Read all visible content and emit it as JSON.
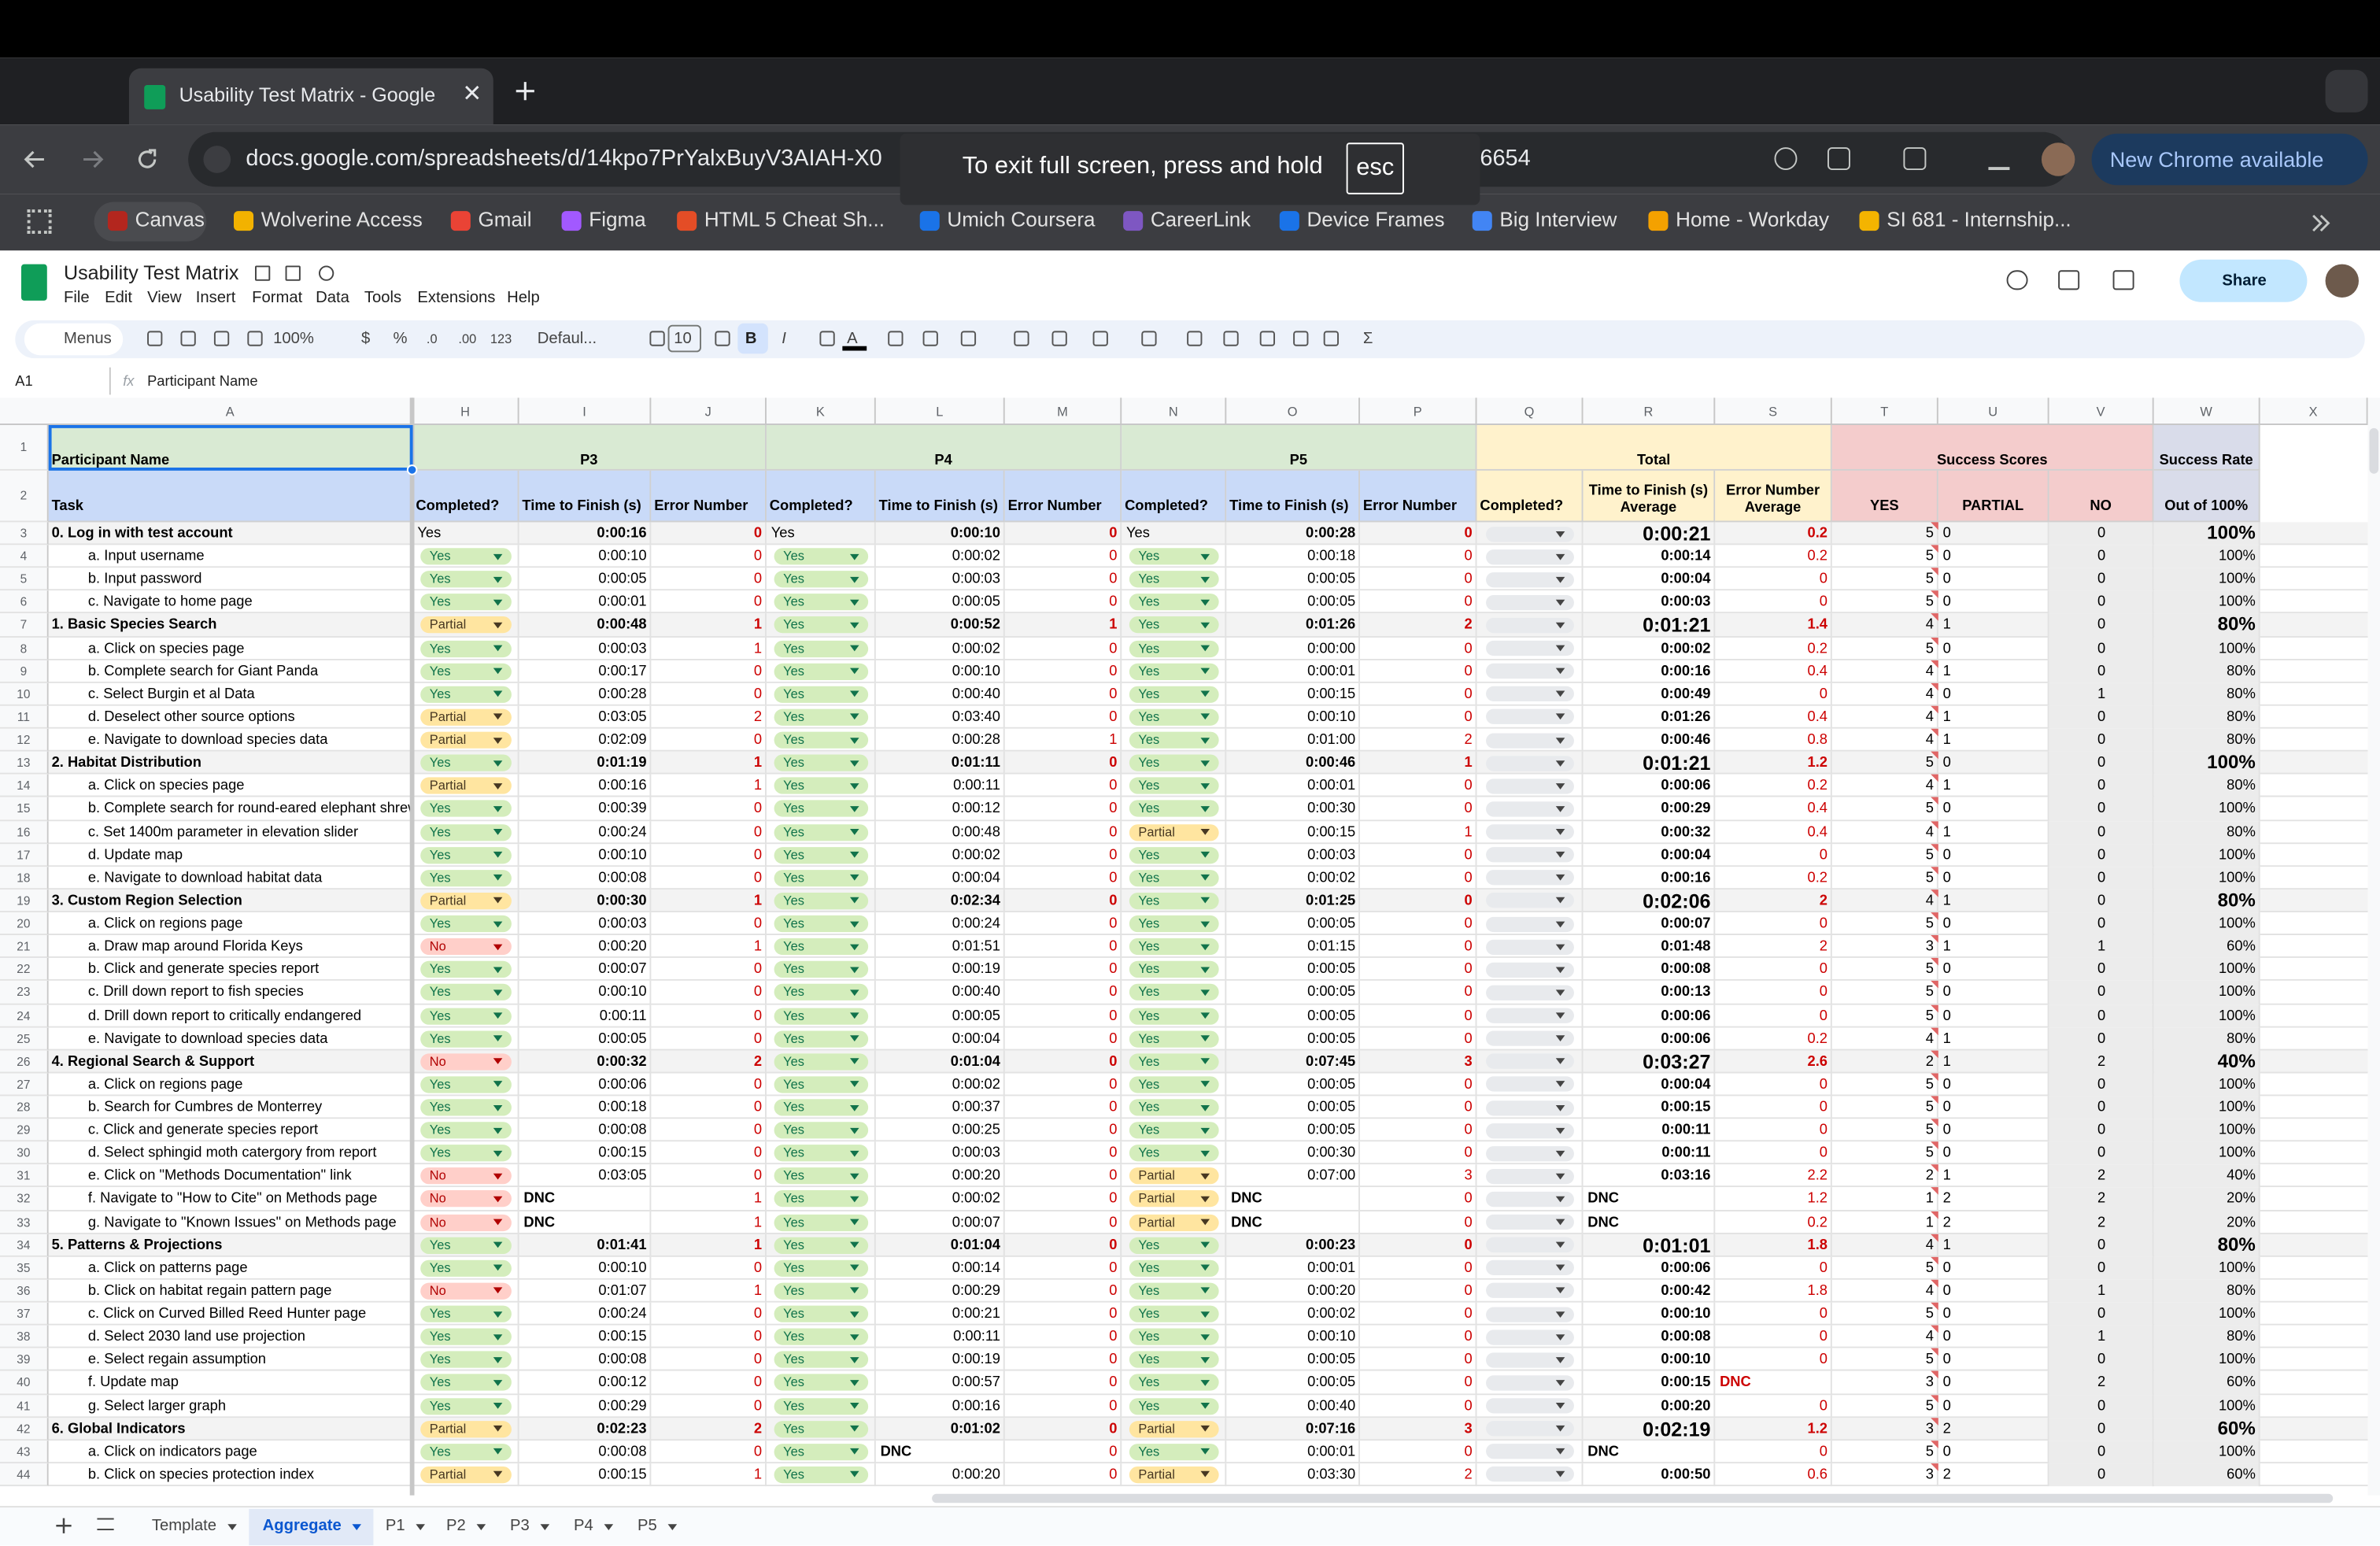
{
  "browser": {
    "tab_title": "Usability Test Matrix - Google",
    "url": "docs.google.com/spreadsheets/d/14kpo7PrYalxBuyV3AIAH-X0",
    "url_tail": "6654",
    "fullscreen_notice": "To exit full screen, press and hold",
    "esc_key": "esc",
    "update_button": "New Chrome available",
    "bookmarks": [
      "Canvas",
      "Wolverine Access",
      "Gmail",
      "Figma",
      "HTML 5 Cheat Sh...",
      "Umich Coursera",
      "CareerLink",
      "Device Frames",
      "Big Interview",
      "Home - Workday",
      "SI 681 - Internship..."
    ]
  },
  "sheets": {
    "title": "Usability Test Matrix",
    "menu": [
      "File",
      "Edit",
      "View",
      "Insert",
      "Format",
      "Data",
      "Tools",
      "Extensions",
      "Help"
    ],
    "share": "Share",
    "toolbar": {
      "search": "Menus",
      "zoom": "100%",
      "currency": "$",
      "percent": "%",
      "decrease_decimal": ".0",
      "increase_decimal": ".00",
      "number_format": "123",
      "font": "Defaul...",
      "font_size": "10",
      "bold": "B",
      "italic": "I",
      "text_color": "A",
      "functions": "Σ"
    },
    "name_box": "A1",
    "formula_label": "fx",
    "formula": "Participant Name",
    "columns": [
      "A",
      "H",
      "I",
      "J",
      "K",
      "L",
      "M",
      "N",
      "O",
      "P",
      "Q",
      "R",
      "S",
      "T",
      "U",
      "V",
      "W",
      "X"
    ],
    "header_rows": [
      {
        "n": "1",
        "cells": [
          "Participant Name",
          "P3",
          "P4",
          "P5",
          "Total",
          "Success Scores",
          "Success Rate"
        ]
      },
      {
        "n": "2",
        "cells": [
          "Task",
          "Completed?",
          "Time to Finish (s)",
          "Error Number",
          "Completed?",
          "Time to Finish (s)",
          "Error Number",
          "Completed?",
          "Time to Finish (s)",
          "Error Number",
          "Completed?",
          "Time to Finish (s) Average",
          "Error Number Average",
          "YES",
          "PARTIAL",
          "NO",
          "Out of 100%"
        ]
      }
    ],
    "rows": [
      {
        "n": "3",
        "cells": [
          "0. Log in with test account",
          "Yes",
          "0:00:16",
          "0",
          "Yes",
          "0:00:10",
          "0",
          "Yes",
          "0:00:28",
          "0",
          "0:00:21",
          "0.2",
          "5",
          "0",
          "0",
          "100%"
        ]
      },
      {
        "n": "4",
        "cells": [
          "a. Input username",
          "Yes",
          "0:00:10",
          "0",
          "Yes",
          "0:00:02",
          "0",
          "Yes",
          "0:00:18",
          "0",
          "0:00:14",
          "0.2",
          "5",
          "0",
          "0",
          "100%"
        ]
      },
      {
        "n": "5",
        "cells": [
          "b. Input password",
          "Yes",
          "0:00:05",
          "0",
          "Yes",
          "0:00:03",
          "0",
          "Yes",
          "0:00:05",
          "0",
          "0:00:04",
          "0",
          "5",
          "0",
          "0",
          "100%"
        ]
      },
      {
        "n": "6",
        "cells": [
          "c. Navigate to home page",
          "Yes",
          "0:00:01",
          "0",
          "Yes",
          "0:00:05",
          "0",
          "Yes",
          "0:00:05",
          "0",
          "0:00:03",
          "0",
          "5",
          "0",
          "0",
          "100%"
        ]
      },
      {
        "n": "7",
        "cells": [
          "1. Basic Species Search",
          "Partial",
          "0:00:48",
          "1",
          "Yes",
          "0:00:52",
          "1",
          "Yes",
          "0:01:26",
          "2",
          "0:01:21",
          "1.4",
          "4",
          "1",
          "0",
          "80%"
        ]
      },
      {
        "n": "8",
        "cells": [
          "a. Click on species page",
          "Yes",
          "0:00:03",
          "1",
          "Yes",
          "0:00:02",
          "0",
          "Yes",
          "0:00:00",
          "0",
          "0:00:02",
          "0.2",
          "5",
          "0",
          "0",
          "100%"
        ]
      },
      {
        "n": "9",
        "cells": [
          "b. Complete search for Giant Panda",
          "Yes",
          "0:00:17",
          "0",
          "Yes",
          "0:00:10",
          "0",
          "Yes",
          "0:00:01",
          "0",
          "0:00:16",
          "0.4",
          "4",
          "1",
          "0",
          "80%"
        ]
      },
      {
        "n": "10",
        "cells": [
          "c. Select Burgin et al Data",
          "Yes",
          "0:00:28",
          "0",
          "Yes",
          "0:00:40",
          "0",
          "Yes",
          "0:00:15",
          "0",
          "0:00:49",
          "0",
          "4",
          "0",
          "1",
          "80%"
        ]
      },
      {
        "n": "11",
        "cells": [
          "d. Deselect other source options",
          "Partial",
          "0:03:05",
          "2",
          "Yes",
          "0:03:40",
          "0",
          "Yes",
          "0:00:10",
          "0",
          "0:01:26",
          "0.4",
          "4",
          "1",
          "0",
          "80%"
        ]
      },
      {
        "n": "12",
        "cells": [
          "e. Navigate to download species data",
          "Partial",
          "0:02:09",
          "0",
          "Yes",
          "0:00:28",
          "1",
          "Yes",
          "0:01:00",
          "2",
          "0:00:46",
          "0.8",
          "4",
          "1",
          "0",
          "80%"
        ]
      },
      {
        "n": "13",
        "cells": [
          "2. Habitat Distribution",
          "Yes",
          "0:01:19",
          "1",
          "Yes",
          "0:01:11",
          "0",
          "Yes",
          "0:00:46",
          "1",
          "0:01:21",
          "1.2",
          "5",
          "0",
          "0",
          "100%"
        ]
      },
      {
        "n": "14",
        "cells": [
          "a. Click on species page",
          "Partial",
          "0:00:16",
          "1",
          "Yes",
          "0:00:11",
          "0",
          "Yes",
          "0:00:01",
          "0",
          "0:00:06",
          "0.2",
          "4",
          "1",
          "0",
          "80%"
        ]
      },
      {
        "n": "15",
        "cells": [
          "b. Complete search for round-eared elephant shrew",
          "Yes",
          "0:00:39",
          "0",
          "Yes",
          "0:00:12",
          "0",
          "Yes",
          "0:00:30",
          "0",
          "0:00:29",
          "0.4",
          "5",
          "0",
          "0",
          "100%"
        ]
      },
      {
        "n": "16",
        "cells": [
          "c. Set 1400m parameter in elevation slider",
          "Yes",
          "0:00:24",
          "0",
          "Yes",
          "0:00:48",
          "0",
          "Partial",
          "0:00:15",
          "1",
          "0:00:32",
          "0.4",
          "4",
          "1",
          "0",
          "80%"
        ]
      },
      {
        "n": "17",
        "cells": [
          "d. Update map",
          "Yes",
          "0:00:10",
          "0",
          "Yes",
          "0:00:02",
          "0",
          "Yes",
          "0:00:03",
          "0",
          "0:00:04",
          "0",
          "5",
          "0",
          "0",
          "100%"
        ]
      },
      {
        "n": "18",
        "cells": [
          "e. Navigate to download habitat data",
          "Yes",
          "0:00:08",
          "0",
          "Yes",
          "0:00:04",
          "0",
          "Yes",
          "0:00:02",
          "0",
          "0:00:16",
          "0.2",
          "5",
          "0",
          "0",
          "100%"
        ]
      },
      {
        "n": "19",
        "cells": [
          "3. Custom Region Selection",
          "Partial",
          "0:00:30",
          "1",
          "Yes",
          "0:02:34",
          "0",
          "Yes",
          "0:01:25",
          "0",
          "0:02:06",
          "2",
          "4",
          "1",
          "0",
          "80%"
        ]
      },
      {
        "n": "20",
        "cells": [
          "a. Click on regions page",
          "Yes",
          "0:00:03",
          "0",
          "Yes",
          "0:00:24",
          "0",
          "Yes",
          "0:00:05",
          "0",
          "0:00:07",
          "0",
          "5",
          "0",
          "0",
          "100%"
        ]
      },
      {
        "n": "21",
        "cells": [
          "a. Draw map around Florida Keys",
          "No",
          "0:00:20",
          "1",
          "Yes",
          "0:01:51",
          "0",
          "Yes",
          "0:01:15",
          "0",
          "0:01:48",
          "2",
          "3",
          "1",
          "1",
          "60%"
        ]
      },
      {
        "n": "22",
        "cells": [
          "b. Click and generate species report",
          "Yes",
          "0:00:07",
          "0",
          "Yes",
          "0:00:19",
          "0",
          "Yes",
          "0:00:05",
          "0",
          "0:00:08",
          "0",
          "5",
          "0",
          "0",
          "100%"
        ]
      },
      {
        "n": "23",
        "cells": [
          "c. Drill down report to fish species",
          "Yes",
          "0:00:10",
          "0",
          "Yes",
          "0:00:40",
          "0",
          "Yes",
          "0:00:05",
          "0",
          "0:00:13",
          "0",
          "5",
          "0",
          "0",
          "100%"
        ]
      },
      {
        "n": "24",
        "cells": [
          "d. Drill down report to critically endangered",
          "Yes",
          "0:00:11",
          "0",
          "Yes",
          "0:00:05",
          "0",
          "Yes",
          "0:00:05",
          "0",
          "0:00:06",
          "0",
          "5",
          "0",
          "0",
          "100%"
        ]
      },
      {
        "n": "25",
        "cells": [
          "e. Navigate to download species data",
          "Yes",
          "0:00:05",
          "0",
          "Yes",
          "0:00:04",
          "0",
          "Yes",
          "0:00:05",
          "0",
          "0:00:06",
          "0.2",
          "4",
          "1",
          "0",
          "80%"
        ]
      },
      {
        "n": "26",
        "cells": [
          "4. Regional Search & Support",
          "No",
          "0:00:32",
          "2",
          "Yes",
          "0:01:04",
          "0",
          "Yes",
          "0:07:45",
          "3",
          "0:03:27",
          "2.6",
          "2",
          "1",
          "2",
          "40%"
        ]
      },
      {
        "n": "27",
        "cells": [
          "a. Click on regions page",
          "Yes",
          "0:00:06",
          "0",
          "Yes",
          "0:00:02",
          "0",
          "Yes",
          "0:00:05",
          "0",
          "0:00:04",
          "0",
          "5",
          "0",
          "0",
          "100%"
        ]
      },
      {
        "n": "28",
        "cells": [
          "b. Search for Cumbres de Monterrey",
          "Yes",
          "0:00:18",
          "0",
          "Yes",
          "0:00:37",
          "0",
          "Yes",
          "0:00:05",
          "0",
          "0:00:15",
          "0",
          "5",
          "0",
          "0",
          "100%"
        ]
      },
      {
        "n": "29",
        "cells": [
          "c. Click and generate species report",
          "Yes",
          "0:00:08",
          "0",
          "Yes",
          "0:00:25",
          "0",
          "Yes",
          "0:00:05",
          "0",
          "0:00:11",
          "0",
          "5",
          "0",
          "0",
          "100%"
        ]
      },
      {
        "n": "30",
        "cells": [
          "d. Select sphingid moth catergory from report",
          "Yes",
          "0:00:15",
          "0",
          "Yes",
          "0:00:03",
          "0",
          "Yes",
          "0:00:30",
          "0",
          "0:00:11",
          "0",
          "5",
          "0",
          "0",
          "100%"
        ]
      },
      {
        "n": "31",
        "cells": [
          "e. Click on \"Methods Documentation\" link",
          "No",
          "0:03:05",
          "0",
          "Yes",
          "0:00:20",
          "0",
          "Partial",
          "0:07:00",
          "3",
          "0:03:16",
          "2.2",
          "2",
          "1",
          "2",
          "40%"
        ]
      },
      {
        "n": "32",
        "cells": [
          "f. Navigate to \"How to Cite\" on Methods page",
          "No",
          "DNC",
          "1",
          "Yes",
          "0:00:02",
          "0",
          "Partial",
          "DNC",
          "0",
          "DNC",
          "1.2",
          "1",
          "2",
          "2",
          "20%"
        ]
      },
      {
        "n": "33",
        "cells": [
          "g. Navigate to \"Known Issues\" on Methods page",
          "No",
          "DNC",
          "1",
          "Yes",
          "0:00:07",
          "0",
          "Partial",
          "DNC",
          "0",
          "DNC",
          "0.2",
          "1",
          "2",
          "2",
          "20%"
        ]
      },
      {
        "n": "34",
        "cells": [
          "5. Patterns & Projections",
          "Yes",
          "0:01:41",
          "1",
          "Yes",
          "0:01:04",
          "0",
          "Yes",
          "0:00:23",
          "0",
          "0:01:01",
          "1.8",
          "4",
          "1",
          "0",
          "80%"
        ]
      },
      {
        "n": "35",
        "cells": [
          "a. Click on patterns page",
          "Yes",
          "0:00:10",
          "0",
          "Yes",
          "0:00:14",
          "0",
          "Yes",
          "0:00:01",
          "0",
          "0:00:06",
          "0",
          "5",
          "0",
          "0",
          "100%"
        ]
      },
      {
        "n": "36",
        "cells": [
          "b. Click on habitat regain pattern page",
          "No",
          "0:01:07",
          "1",
          "Yes",
          "0:00:29",
          "0",
          "Yes",
          "0:00:20",
          "0",
          "0:00:42",
          "1.8",
          "4",
          "0",
          "1",
          "80%"
        ]
      },
      {
        "n": "37",
        "cells": [
          "c. Click on Curved Billed Reed Hunter page",
          "Yes",
          "0:00:24",
          "0",
          "Yes",
          "0:00:21",
          "0",
          "Yes",
          "0:00:02",
          "0",
          "0:00:10",
          "0",
          "5",
          "0",
          "0",
          "100%"
        ]
      },
      {
        "n": "38",
        "cells": [
          "d. Select 2030 land use projection",
          "Yes",
          "0:00:15",
          "0",
          "Yes",
          "0:00:11",
          "0",
          "Yes",
          "0:00:10",
          "0",
          "0:00:08",
          "0",
          "4",
          "0",
          "1",
          "80%"
        ]
      },
      {
        "n": "39",
        "cells": [
          "e. Select regain assumption",
          "Yes",
          "0:00:08",
          "0",
          "Yes",
          "0:00:19",
          "0",
          "Yes",
          "0:00:05",
          "0",
          "0:00:10",
          "0",
          "5",
          "0",
          "0",
          "100%"
        ]
      },
      {
        "n": "40",
        "cells": [
          "f. Update map",
          "Yes",
          "0:00:12",
          "0",
          "Yes",
          "0:00:57",
          "0",
          "Yes",
          "0:00:05",
          "0",
          "0:00:15",
          "DNC",
          "3",
          "0",
          "2",
          "60%"
        ]
      },
      {
        "n": "41",
        "cells": [
          "g. Select larger graph",
          "Yes",
          "0:00:29",
          "0",
          "Yes",
          "0:00:16",
          "0",
          "Yes",
          "0:00:40",
          "0",
          "0:00:20",
          "0",
          "5",
          "0",
          "0",
          "100%"
        ]
      },
      {
        "n": "42",
        "cells": [
          "6. Global Indicators",
          "Partial",
          "0:02:23",
          "2",
          "Yes",
          "0:01:02",
          "0",
          "Partial",
          "0:07:16",
          "3",
          "0:02:19",
          "1.2",
          "3",
          "2",
          "0",
          "60%"
        ]
      },
      {
        "n": "43",
        "cells": [
          "a. Click on indicators page",
          "Yes",
          "0:00:08",
          "0",
          "Yes",
          "DNC",
          "0",
          "Yes",
          "0:00:01",
          "0",
          "DNC",
          "0",
          "5",
          "0",
          "0",
          "100%"
        ]
      },
      {
        "n": "44",
        "cells": [
          "b. Click on species protection index",
          "Partial",
          "0:00:15",
          "1",
          "Yes",
          "0:00:20",
          "0",
          "Partial",
          "0:03:30",
          "2",
          "0:00:50",
          "0.6",
          "3",
          "2",
          "0",
          "60%"
        ]
      }
    ],
    "sheet_tabs": [
      "Template",
      "Aggregate",
      "P1",
      "P2",
      "P3",
      "P4",
      "P5"
    ]
  }
}
